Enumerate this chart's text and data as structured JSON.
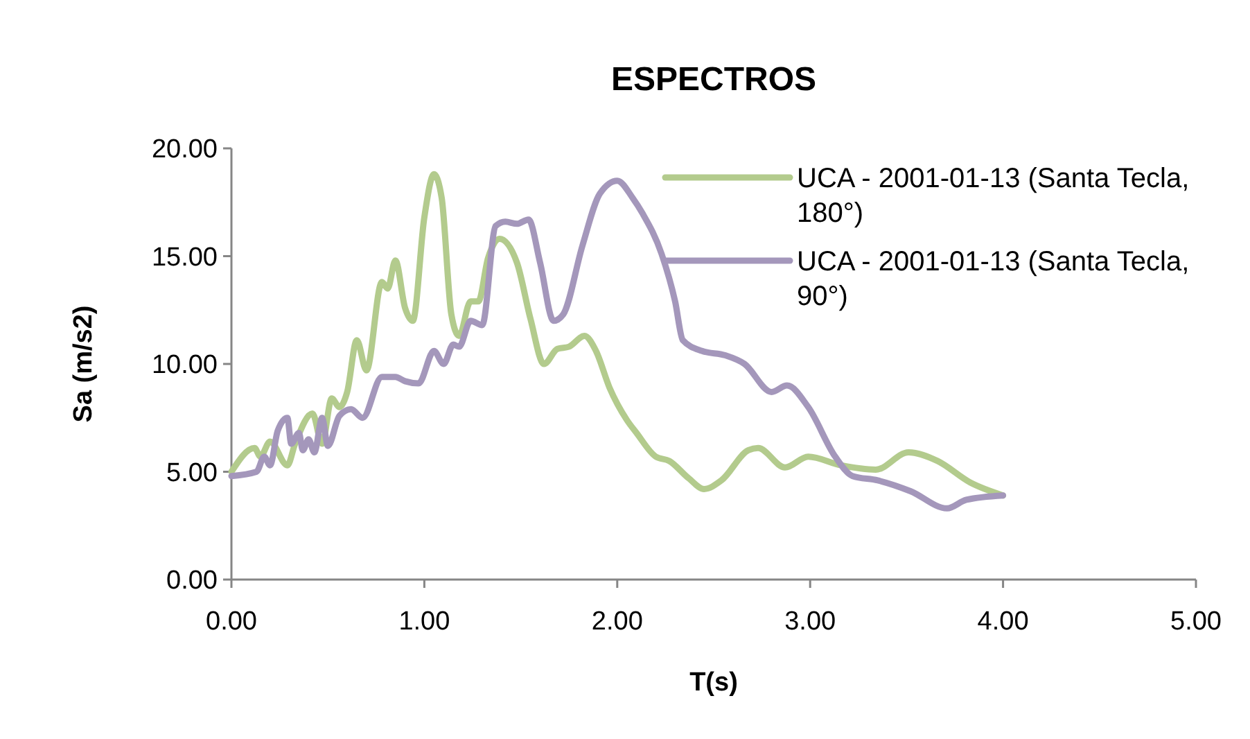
{
  "chart_data": {
    "type": "line",
    "title": "ESPECTROS",
    "xlabel": "T(s)",
    "ylabel": "Sa (m/s2)",
    "xlim": [
      0,
      5
    ],
    "ylim": [
      0,
      20
    ],
    "xticks": [
      {
        "value": 0,
        "label": "0.00"
      },
      {
        "value": 1,
        "label": "1.00"
      },
      {
        "value": 2,
        "label": "2.00"
      },
      {
        "value": 3,
        "label": "3.00"
      },
      {
        "value": 4,
        "label": "4.00"
      },
      {
        "value": 5,
        "label": "5.00"
      }
    ],
    "yticks": [
      {
        "value": 0,
        "label": "0.00"
      },
      {
        "value": 5,
        "label": "5.00"
      },
      {
        "value": 10,
        "label": "10.00"
      },
      {
        "value": 15,
        "label": "15.00"
      },
      {
        "value": 20,
        "label": "20.00"
      }
    ],
    "legend": "top right",
    "grid": false,
    "marker": "none",
    "line_style": "solid",
    "series": [
      {
        "name": "UCA - 2001-01-13 (Santa Tecla, 180°)",
        "color": "#b3cb8d",
        "x": [
          0,
          0.12,
          0.15,
          0.2,
          0.29,
          0.33,
          0.42,
          0.47,
          0.52,
          0.56,
          0.6,
          0.65,
          0.7,
          0.78,
          0.81,
          0.85,
          0.9,
          0.94,
          1.0,
          1.05,
          1.09,
          1.14,
          1.18,
          1.24,
          1.28,
          1.33,
          1.39,
          1.48,
          1.55,
          1.62,
          1.69,
          1.75,
          1.83,
          1.89,
          1.96,
          2.05,
          2.1,
          2.2,
          2.27,
          2.37,
          2.45,
          2.54,
          2.68,
          2.73,
          2.87,
          2.99,
          3.16,
          3.34,
          3.51,
          3.66,
          3.83,
          4.0
        ],
        "values": [
          5.0,
          6.1,
          5.7,
          6.4,
          5.3,
          6.3,
          7.7,
          6.3,
          8.4,
          8.0,
          8.7,
          11.1,
          9.7,
          13.8,
          13.5,
          14.8,
          12.6,
          12.0,
          16.8,
          18.8,
          17.7,
          12.3,
          11.3,
          12.9,
          12.9,
          14.9,
          15.8,
          14.7,
          12.1,
          10.0,
          10.7,
          10.8,
          11.3,
          10.6,
          8.9,
          7.4,
          6.8,
          5.7,
          5.5,
          4.7,
          4.2,
          4.6,
          6.0,
          6.1,
          5.2,
          5.7,
          5.3,
          5.1,
          5.9,
          5.5,
          4.5,
          3.9
        ]
      },
      {
        "name": "UCA - 2001-01-13 (Santa Tecla, 90°)",
        "color": "#a497bb",
        "x": [
          0,
          0.13,
          0.17,
          0.2,
          0.24,
          0.29,
          0.31,
          0.35,
          0.37,
          0.4,
          0.43,
          0.47,
          0.5,
          0.56,
          0.62,
          0.68,
          0.78,
          0.85,
          0.9,
          0.97,
          1.05,
          1.1,
          1.15,
          1.18,
          1.24,
          1.3,
          1.37,
          1.42,
          1.48,
          1.54,
          1.6,
          1.67,
          1.72,
          1.82,
          1.91,
          2.0,
          2.08,
          2.13,
          2.23,
          2.3,
          2.34,
          2.44,
          2.56,
          2.66,
          2.8,
          2.88,
          2.99,
          3.13,
          3.22,
          3.35,
          3.52,
          3.71,
          3.81,
          4.0
        ],
        "values": [
          4.8,
          5.0,
          5.7,
          5.3,
          6.9,
          7.5,
          6.3,
          6.8,
          6.0,
          6.5,
          5.9,
          7.5,
          6.2,
          7.6,
          7.9,
          7.5,
          9.4,
          9.4,
          9.2,
          9.1,
          10.6,
          10.0,
          10.9,
          10.8,
          12.0,
          11.8,
          16.4,
          16.6,
          16.5,
          16.7,
          14.7,
          12.0,
          12.3,
          15.5,
          17.9,
          18.5,
          17.7,
          17.0,
          15.1,
          12.9,
          11.1,
          10.6,
          10.4,
          10.0,
          8.7,
          9.0,
          8.0,
          5.7,
          4.8,
          4.6,
          4.1,
          3.3,
          3.7,
          3.9
        ]
      }
    ]
  }
}
